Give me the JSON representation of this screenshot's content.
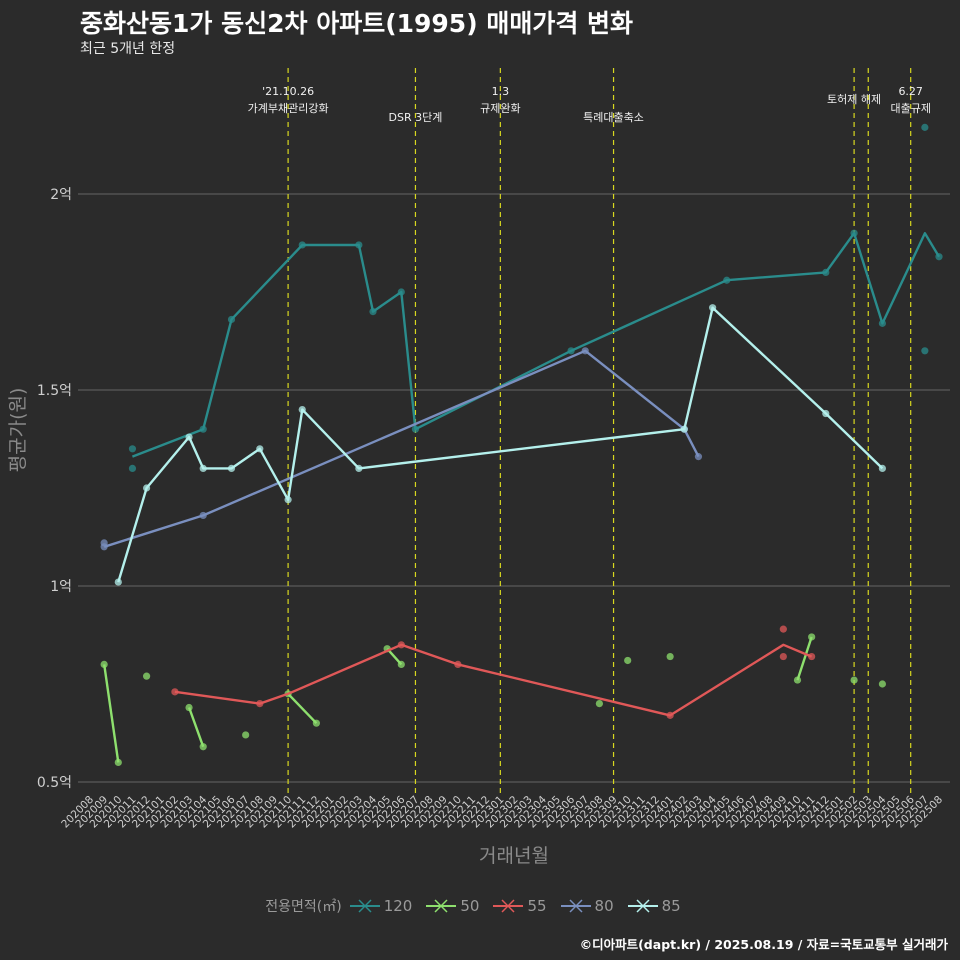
{
  "title": "중화산동1가 동신2차 아파트(1995) 매매가격 변화",
  "subtitle": "최근 5개년 한정",
  "caption": "©디아파트(dapt.kr) / 2025.08.19 / 자료=국토교통부 실거래가",
  "legend": {
    "title": "전용면적(㎡)",
    "items": [
      {
        "label": "120",
        "color": "#2a8c8c"
      },
      {
        "label": "50",
        "color": "#8ee06e"
      },
      {
        "label": "55",
        "color": "#e05858"
      },
      {
        "label": "80",
        "color": "#7a8fbf"
      },
      {
        "label": "85",
        "color": "#b4f0ec"
      }
    ]
  },
  "chart_data": {
    "type": "line",
    "xlabel": "거래년월",
    "ylabel": "평균가(원)",
    "y_unit": "억",
    "ylim": [
      0.5,
      2.0
    ],
    "y_ticks": [
      {
        "value": 0.5,
        "label": "0.5억"
      },
      {
        "value": 1.0,
        "label": "1억"
      },
      {
        "value": 1.5,
        "label": "1.5억"
      },
      {
        "value": 2.0,
        "label": "2억"
      }
    ],
    "grid": true,
    "x_categories": [
      "202008",
      "202009",
      "202010",
      "202011",
      "202012",
      "202101",
      "202102",
      "202103",
      "202104",
      "202105",
      "202106",
      "202107",
      "202108",
      "202109",
      "202110",
      "202111",
      "202112",
      "202201",
      "202202",
      "202203",
      "202204",
      "202205",
      "202206",
      "202207",
      "202208",
      "202209",
      "202210",
      "202211",
      "202212",
      "202301",
      "202302",
      "202303",
      "202304",
      "202305",
      "202306",
      "202307",
      "202308",
      "202309",
      "202310",
      "202311",
      "202312",
      "202401",
      "202402",
      "202403",
      "202404",
      "202405",
      "202406",
      "202407",
      "202408",
      "202409",
      "202410",
      "202411",
      "202412",
      "202501",
      "202502",
      "202503",
      "202504",
      "202505",
      "202506",
      "202507",
      "202508"
    ],
    "events": [
      {
        "x": "202110",
        "lines": [
          "'21.10.26",
          "가계부채관리강화"
        ]
      },
      {
        "x": "202207",
        "lines": [
          "DSR 3단계"
        ]
      },
      {
        "x": "202301",
        "lines": [
          "1.3",
          "규제완화"
        ]
      },
      {
        "x": "202309",
        "lines": [
          "특례대출축소"
        ]
      },
      {
        "x": "202502",
        "lines": [
          "토허제 해제"
        ]
      },
      {
        "x": "202503",
        "lines": []
      },
      {
        "x": "202506",
        "lines": [
          "6.27",
          "대출규제"
        ]
      }
    ],
    "series": [
      {
        "name": "120",
        "color": "#2a8c8c",
        "line": [
          [
            "202011",
            1.33
          ],
          [
            "202104",
            1.4
          ],
          [
            "202106",
            1.68
          ],
          [
            "202111",
            1.87
          ],
          [
            "202203",
            1.87
          ],
          [
            "202204",
            1.7
          ],
          [
            "202206",
            1.75
          ],
          [
            "202207",
            1.4
          ],
          [
            "202306",
            1.6
          ],
          [
            "202405",
            1.78
          ],
          [
            "202412",
            1.8
          ],
          [
            "202502",
            1.9
          ],
          [
            "202504",
            1.67
          ],
          [
            "202507",
            1.9
          ],
          [
            "202508",
            1.84
          ]
        ],
        "points": [
          [
            "202011",
            1.35
          ],
          [
            "202011",
            1.3
          ],
          [
            "202104",
            1.4
          ],
          [
            "202106",
            1.68
          ],
          [
            "202111",
            1.87
          ],
          [
            "202203",
            1.87
          ],
          [
            "202204",
            1.7
          ],
          [
            "202206",
            1.75
          ],
          [
            "202207",
            1.4
          ],
          [
            "202306",
            1.6
          ],
          [
            "202405",
            1.78
          ],
          [
            "202412",
            1.8
          ],
          [
            "202502",
            1.9
          ],
          [
            "202504",
            1.67
          ],
          [
            "202507",
            2.17
          ],
          [
            "202507",
            1.6
          ],
          [
            "202508",
            1.84
          ]
        ]
      },
      {
        "name": "50",
        "color": "#8ee06e",
        "line": [
          [
            "202009",
            0.8
          ],
          [
            "202010",
            0.55
          ]
        ],
        "extra_lines": [
          [
            [
              "202103",
              0.69
            ],
            [
              "202104",
              0.59
            ]
          ],
          [
            [
              "202110",
              0.725
            ],
            [
              "202112",
              0.65
            ]
          ],
          [
            [
              "202205",
              0.84
            ],
            [
              "202206",
              0.8
            ]
          ],
          [
            [
              "202410",
              0.76
            ],
            [
              "202411",
              0.87
            ]
          ]
        ],
        "points": [
          [
            "202009",
            0.8
          ],
          [
            "202010",
            0.55
          ],
          [
            "202012",
            0.77
          ],
          [
            "202103",
            0.69
          ],
          [
            "202104",
            0.59
          ],
          [
            "202107",
            0.62
          ],
          [
            "202110",
            0.725
          ],
          [
            "202112",
            0.65
          ],
          [
            "202205",
            0.84
          ],
          [
            "202206",
            0.8
          ],
          [
            "202308",
            0.7
          ],
          [
            "202310",
            0.81
          ],
          [
            "202401",
            0.82
          ],
          [
            "202410",
            0.76
          ],
          [
            "202411",
            0.87
          ],
          [
            "202502",
            0.76
          ],
          [
            "202504",
            0.75
          ]
        ]
      },
      {
        "name": "55",
        "color": "#e05858",
        "line": [
          [
            "202102",
            0.73
          ],
          [
            "202108",
            0.7
          ],
          [
            "202110",
            0.725
          ],
          [
            "202206",
            0.85
          ],
          [
            "202210",
            0.8
          ],
          [
            "202401",
            0.67
          ],
          [
            "202409",
            0.85
          ],
          [
            "202411",
            0.82
          ]
        ],
        "points": [
          [
            "202102",
            0.73
          ],
          [
            "202108",
            0.7
          ],
          [
            "202206",
            0.85
          ],
          [
            "202210",
            0.8
          ],
          [
            "202401",
            0.67
          ],
          [
            "202409",
            0.89
          ],
          [
            "202409",
            0.82
          ],
          [
            "202411",
            0.82
          ]
        ]
      },
      {
        "name": "80",
        "color": "#7a8fbf",
        "line": [
          [
            "202009",
            1.1
          ],
          [
            "202104",
            1.18
          ],
          [
            "202307",
            1.6
          ],
          [
            "202402",
            1.4
          ],
          [
            "202403",
            1.33
          ]
        ],
        "points": [
          [
            "202009",
            1.11
          ],
          [
            "202009",
            1.1
          ],
          [
            "202104",
            1.18
          ],
          [
            "202307",
            1.6
          ],
          [
            "202402",
            1.4
          ],
          [
            "202403",
            1.33
          ]
        ]
      },
      {
        "name": "85",
        "color": "#b4f0ec",
        "line": [
          [
            "202010",
            1.01
          ],
          [
            "202012",
            1.25
          ],
          [
            "202103",
            1.38
          ],
          [
            "202104",
            1.3
          ],
          [
            "202106",
            1.3
          ],
          [
            "202108",
            1.35
          ],
          [
            "202110",
            1.22
          ],
          [
            "202111",
            1.45
          ],
          [
            "202203",
            1.3
          ],
          [
            "202402",
            1.4
          ],
          [
            "202404",
            1.71
          ],
          [
            "202412",
            1.44
          ],
          [
            "202504",
            1.3
          ]
        ],
        "points": [
          [
            "202010",
            1.01
          ],
          [
            "202012",
            1.25
          ],
          [
            "202103",
            1.38
          ],
          [
            "202104",
            1.3
          ],
          [
            "202106",
            1.3
          ],
          [
            "202108",
            1.35
          ],
          [
            "202110",
            1.22
          ],
          [
            "202111",
            1.45
          ],
          [
            "202203",
            1.3
          ],
          [
            "202402",
            1.4
          ],
          [
            "202404",
            1.71
          ],
          [
            "202412",
            1.44
          ],
          [
            "202504",
            1.3
          ]
        ]
      }
    ]
  }
}
